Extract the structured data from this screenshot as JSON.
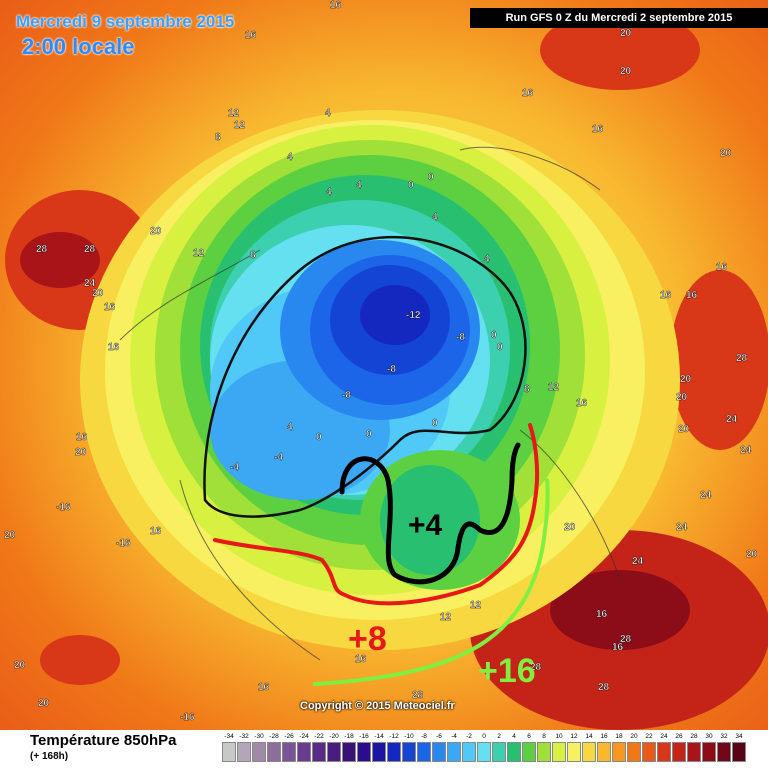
{
  "header": {
    "date_label": "Mercredi 9 septembre 2015",
    "time_label": "2:00 locale",
    "run_label": "Run GFS 0 Z du Mercredi 2 septembre 2015"
  },
  "copyright": "Copyright © 2015 Meteociel.fr",
  "legend": {
    "title": "Température 850hPa",
    "subtitle": "(+ 168h)",
    "scale": [
      {
        "v": "-34",
        "c": "#c8c8c8"
      },
      {
        "v": "-32",
        "c": "#b4a6b8"
      },
      {
        "v": "-30",
        "c": "#a08aa8"
      },
      {
        "v": "-28",
        "c": "#8c6e9c"
      },
      {
        "v": "-26",
        "c": "#7a5496"
      },
      {
        "v": "-24",
        "c": "#6c3c90"
      },
      {
        "v": "-22",
        "c": "#5a2a88"
      },
      {
        "v": "-20",
        "c": "#481c80"
      },
      {
        "v": "-18",
        "c": "#3a107a"
      },
      {
        "v": "-16",
        "c": "#2a0c8c"
      },
      {
        "v": "-14",
        "c": "#1c14a4"
      },
      {
        "v": "-12",
        "c": "#1428c0"
      },
      {
        "v": "-10",
        "c": "#1444d4"
      },
      {
        "v": "-8",
        "c": "#1c64e8"
      },
      {
        "v": "-6",
        "c": "#2888f0"
      },
      {
        "v": "-4",
        "c": "#3ca8f4"
      },
      {
        "v": "-2",
        "c": "#50c8f8"
      },
      {
        "v": "0",
        "c": "#64e0f0"
      },
      {
        "v": "2",
        "c": "#3cd0b0"
      },
      {
        "v": "4",
        "c": "#28c070"
      },
      {
        "v": "6",
        "c": "#5cd040"
      },
      {
        "v": "8",
        "c": "#a0e038"
      },
      {
        "v": "10",
        "c": "#d8f040"
      },
      {
        "v": "12",
        "c": "#f8f060"
      },
      {
        "v": "14",
        "c": "#f8d840"
      },
      {
        "v": "16",
        "c": "#f8b830"
      },
      {
        "v": "18",
        "c": "#f89820"
      },
      {
        "v": "20",
        "c": "#f07818"
      },
      {
        "v": "22",
        "c": "#e85818"
      },
      {
        "v": "24",
        "c": "#d83818"
      },
      {
        "v": "26",
        "c": "#c42418"
      },
      {
        "v": "28",
        "c": "#a81418"
      },
      {
        "v": "30",
        "c": "#8c0c18"
      },
      {
        "v": "32",
        "c": "#700818"
      },
      {
        "v": "34",
        "c": "#580414"
      }
    ]
  },
  "annotations": {
    "plus4": "+4",
    "plus8": "+8",
    "plus16": "+16"
  },
  "map_labels": [
    {
      "t": "16"
    },
    {
      "t": "16"
    },
    {
      "t": "20"
    },
    {
      "t": "20"
    },
    {
      "t": "20"
    },
    {
      "t": "20"
    },
    {
      "t": "16"
    },
    {
      "t": "16"
    },
    {
      "t": "12"
    },
    {
      "t": "12"
    },
    {
      "t": "8"
    },
    {
      "t": "4"
    },
    {
      "t": "4"
    },
    {
      "t": "4"
    },
    {
      "t": "4"
    },
    {
      "t": "4"
    },
    {
      "t": "0"
    },
    {
      "t": "0"
    },
    {
      "t": "4"
    },
    {
      "t": "12"
    },
    {
      "t": "8"
    },
    {
      "t": "12"
    },
    {
      "t": "16"
    },
    {
      "t": "16"
    },
    {
      "t": "16"
    },
    {
      "t": "28"
    },
    {
      "t": "28"
    },
    {
      "t": "24"
    },
    {
      "t": "20"
    },
    {
      "t": "20"
    },
    {
      "t": "16"
    },
    {
      "t": "16"
    },
    {
      "t": "-12"
    },
    {
      "t": "-8"
    },
    {
      "t": "-8"
    },
    {
      "t": "-8"
    },
    {
      "t": "0"
    },
    {
      "t": "0"
    },
    {
      "t": "0"
    },
    {
      "t": "0"
    },
    {
      "t": "16"
    },
    {
      "t": "20"
    },
    {
      "t": "28"
    },
    {
      "t": "20"
    },
    {
      "t": "24"
    },
    {
      "t": "20"
    },
    {
      "t": "24"
    },
    {
      "t": "24"
    },
    {
      "t": "20"
    },
    {
      "t": "12"
    },
    {
      "t": "16"
    },
    {
      "t": "16"
    },
    {
      "t": "16"
    },
    {
      "t": "12"
    },
    {
      "t": "24"
    },
    {
      "t": "28"
    },
    {
      "t": "28"
    },
    {
      "t": "28"
    },
    {
      "t": "28"
    },
    {
      "t": "20"
    },
    {
      "t": "-16"
    },
    {
      "t": "-16"
    },
    {
      "t": "16"
    },
    {
      "t": "20"
    },
    {
      "t": "-4"
    },
    {
      "t": "-4"
    },
    {
      "t": "0"
    },
    {
      "t": "4"
    },
    {
      "t": "8"
    },
    {
      "t": "16"
    },
    {
      "t": "20"
    },
    {
      "t": "24"
    },
    {
      "t": "20"
    },
    {
      "t": "-16"
    },
    {
      "t": "16"
    },
    {
      "t": "20"
    }
  ]
}
